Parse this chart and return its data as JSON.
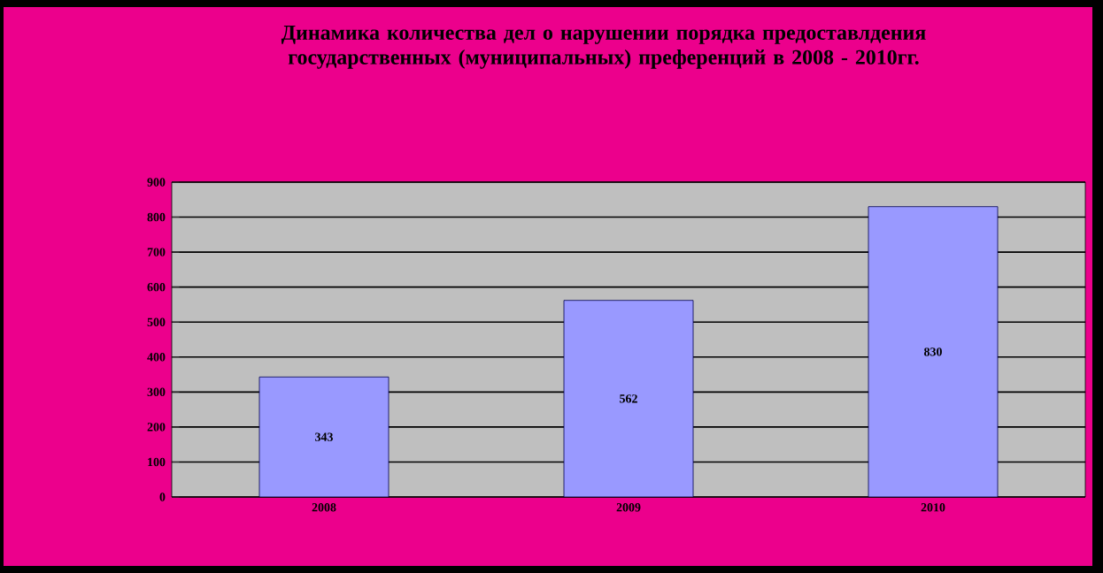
{
  "chart_data": {
    "type": "bar",
    "title": "Динамика количества дел о нарушении порядка предоставлдения государственных (муниципальных) преференций в 2008 - 2010гг.",
    "categories": [
      "2008",
      "2009",
      "2010"
    ],
    "values": [
      343,
      562,
      830
    ],
    "color": "#9999ff",
    "data_labels": true,
    "ylim": [
      0,
      900
    ],
    "yticks": [
      0,
      100,
      200,
      300,
      400,
      500,
      600,
      700,
      800,
      900
    ],
    "grid": "y"
  }
}
